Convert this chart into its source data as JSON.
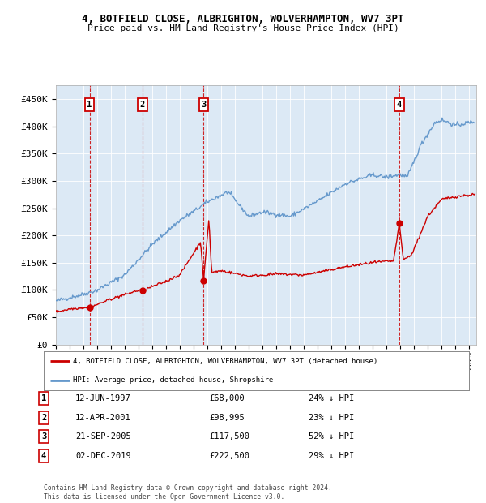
{
  "title1": "4, BOTFIELD CLOSE, ALBRIGHTON, WOLVERHAMPTON, WV7 3PT",
  "title2": "Price paid vs. HM Land Registry's House Price Index (HPI)",
  "bg_color": "#dce9f5",
  "red_color": "#cc0000",
  "blue_color": "#6699cc",
  "ylim": [
    0,
    475000
  ],
  "yticks": [
    0,
    50000,
    100000,
    150000,
    200000,
    250000,
    300000,
    350000,
    400000,
    450000
  ],
  "ytick_labels": [
    "£0",
    "£50K",
    "£100K",
    "£150K",
    "£200K",
    "£250K",
    "£300K",
    "£350K",
    "£400K",
    "£450K"
  ],
  "xlim_start": 1995.0,
  "xlim_end": 2025.5,
  "xtick_years": [
    1995,
    1996,
    1997,
    1998,
    1999,
    2000,
    2001,
    2002,
    2003,
    2004,
    2005,
    2006,
    2007,
    2008,
    2009,
    2010,
    2011,
    2012,
    2013,
    2014,
    2015,
    2016,
    2017,
    2018,
    2019,
    2020,
    2021,
    2022,
    2023,
    2024,
    2025
  ],
  "sale_dates": [
    1997.44,
    2001.28,
    2005.72,
    2019.92
  ],
  "sale_prices": [
    68000,
    98995,
    117500,
    222500
  ],
  "sale_labels": [
    "1",
    "2",
    "3",
    "4"
  ],
  "legend_entries": [
    "4, BOTFIELD CLOSE, ALBRIGHTON, WOLVERHAMPTON, WV7 3PT (detached house)",
    "HPI: Average price, detached house, Shropshire"
  ],
  "table_rows": [
    [
      "1",
      "12-JUN-1997",
      "£68,000",
      "24% ↓ HPI"
    ],
    [
      "2",
      "12-APR-2001",
      "£98,995",
      "23% ↓ HPI"
    ],
    [
      "3",
      "21-SEP-2005",
      "£117,500",
      "52% ↓ HPI"
    ],
    [
      "4",
      "02-DEC-2019",
      "£222,500",
      "29% ↓ HPI"
    ]
  ],
  "footer": "Contains HM Land Registry data © Crown copyright and database right 2024.\nThis data is licensed under the Open Government Licence v3.0."
}
